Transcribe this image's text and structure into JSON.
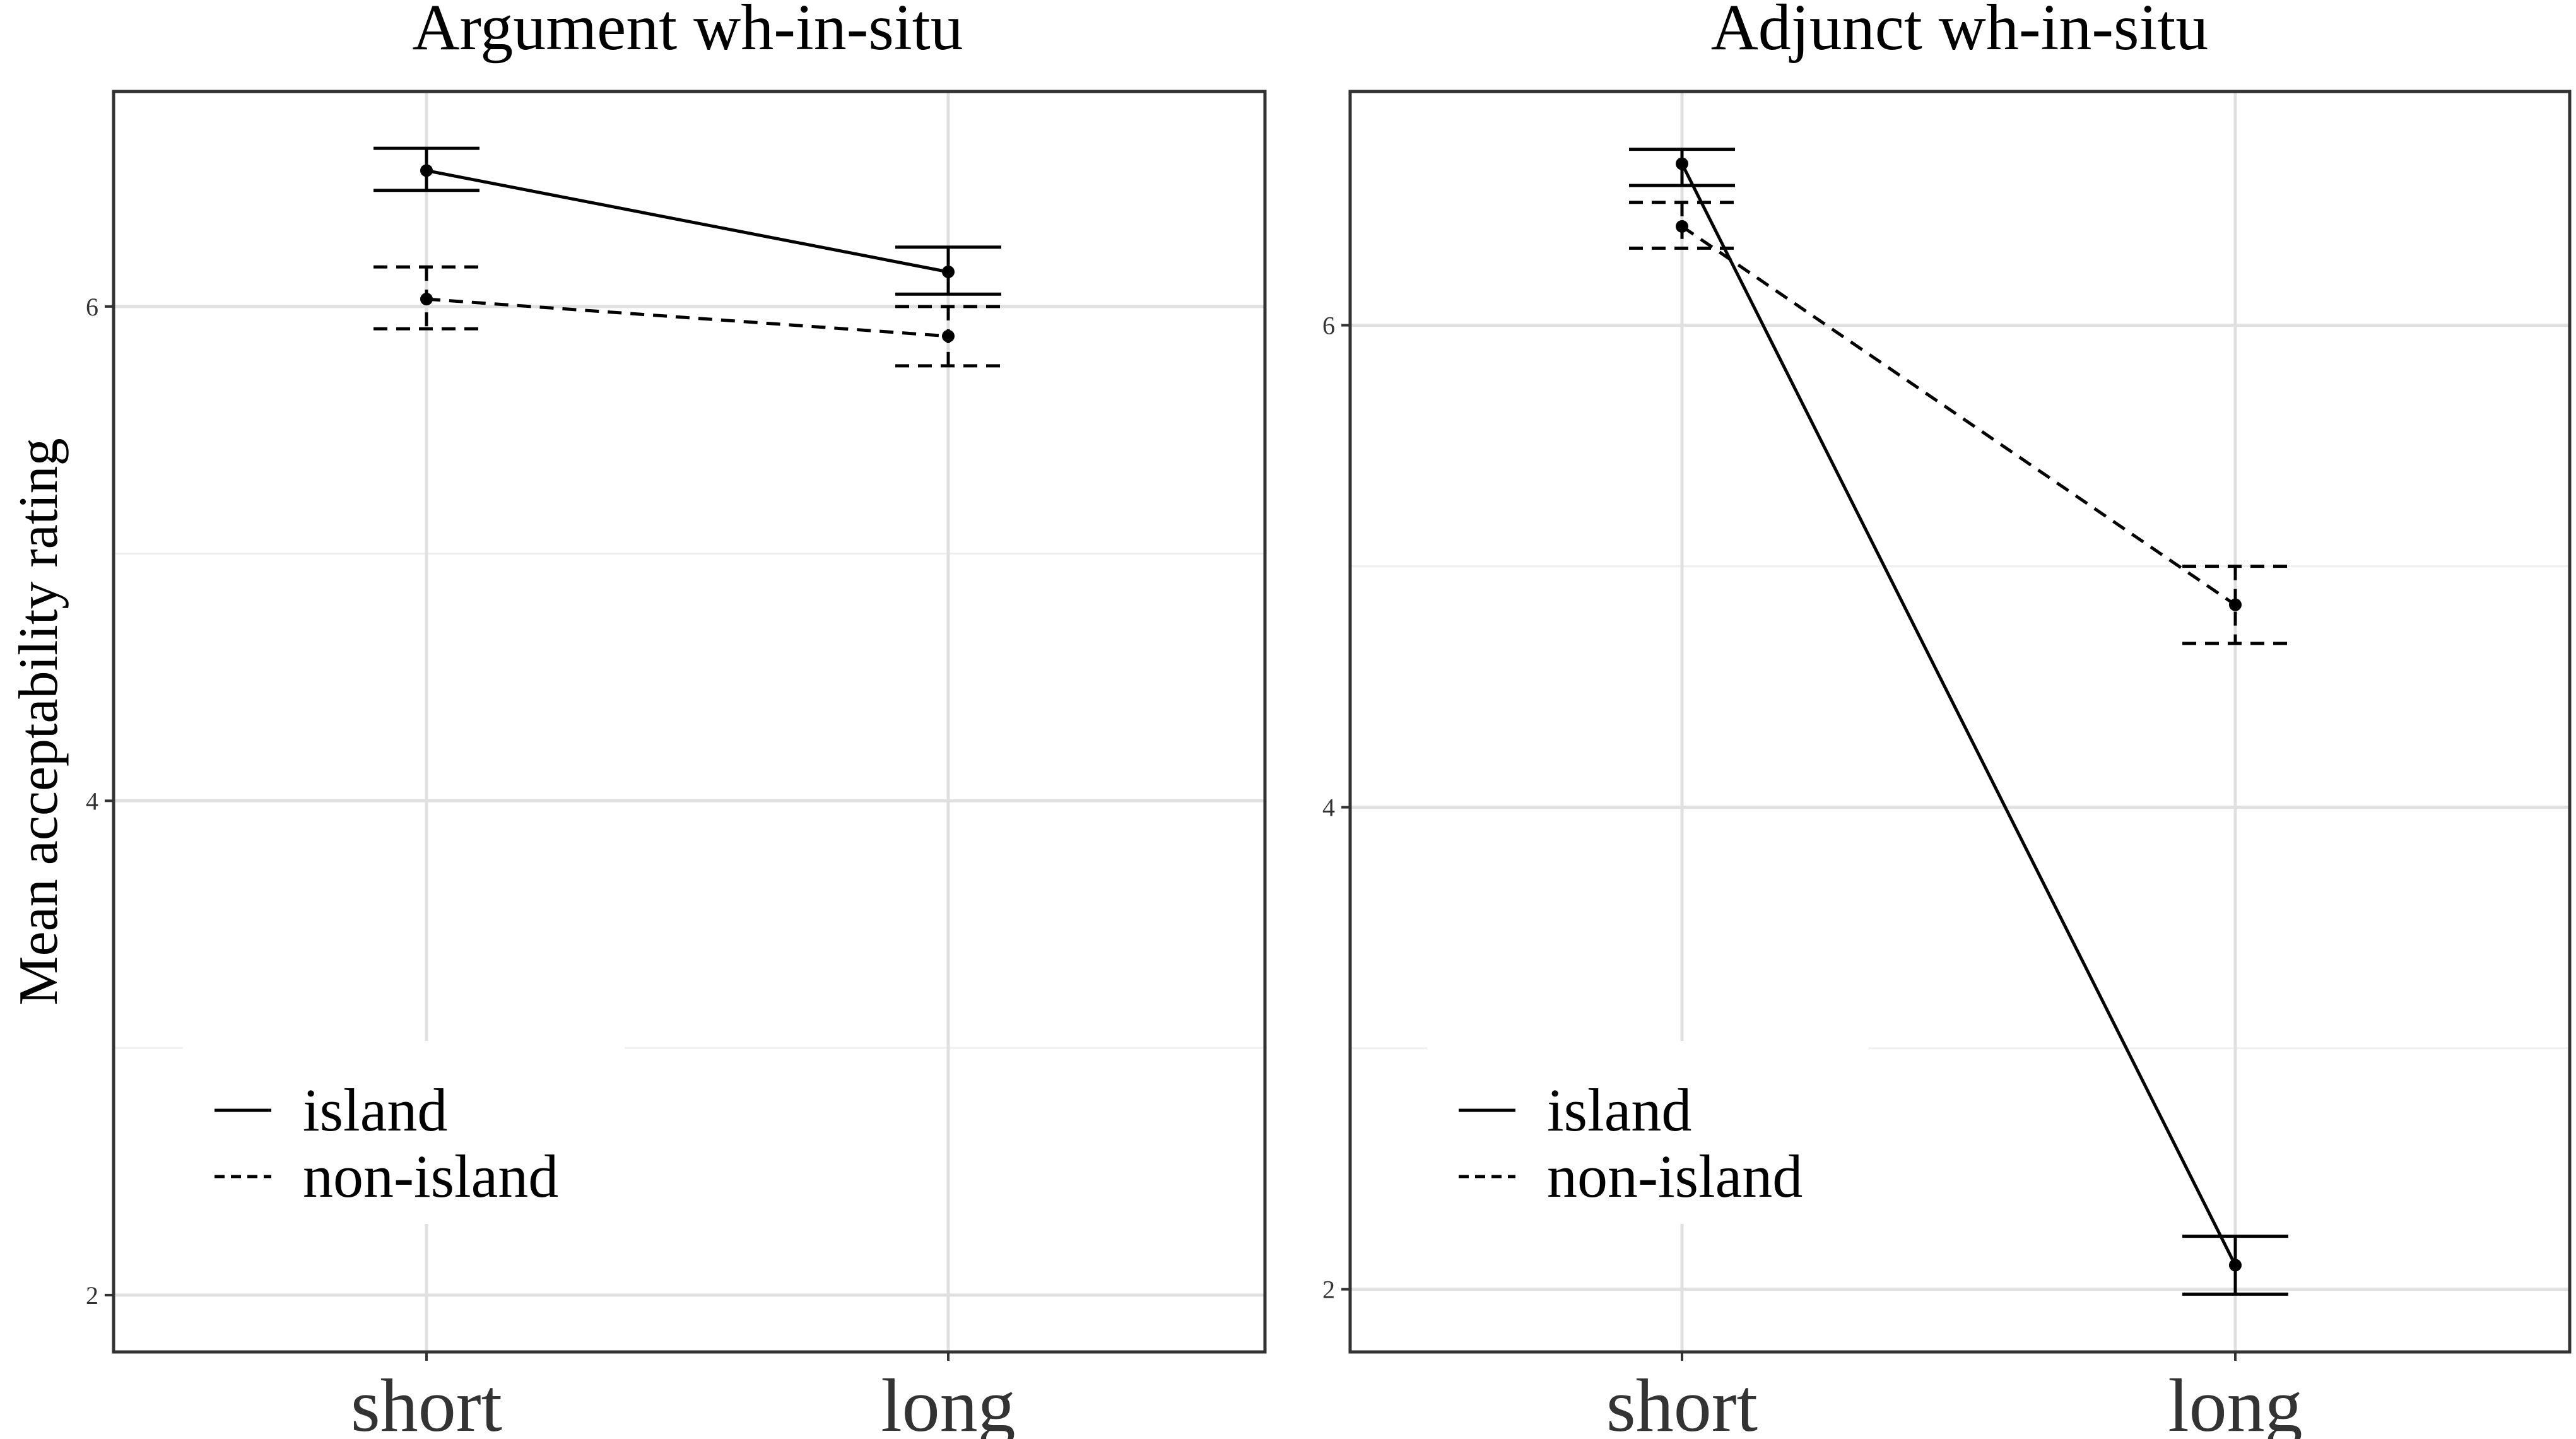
{
  "chart_data": [
    {
      "type": "line",
      "title": "Argument wh-in-situ",
      "xlabel": "",
      "ylabel": "Mean acceptability rating",
      "categories": [
        "short",
        "long"
      ],
      "ylim": [
        1.77,
        6.87
      ],
      "yticks": [
        2,
        4,
        6
      ],
      "grid": true,
      "legend_position": "bottom-left",
      "series": [
        {
          "name": "island",
          "linestyle": "solid",
          "values": [
            6.55,
            6.14
          ],
          "lower": [
            6.47,
            6.05
          ],
          "upper": [
            6.64,
            6.24
          ]
        },
        {
          "name": "non-island",
          "linestyle": "dashed",
          "values": [
            6.03,
            5.88
          ],
          "lower": [
            5.91,
            5.76
          ],
          "upper": [
            6.16,
            6.0
          ]
        }
      ]
    },
    {
      "type": "line",
      "title": "Adjunct wh-in-situ",
      "xlabel": "",
      "ylabel": "",
      "categories": [
        "short",
        "long"
      ],
      "ylim": [
        1.74,
        6.97
      ],
      "yticks": [
        2,
        4,
        6
      ],
      "grid": true,
      "legend_position": "bottom-left",
      "series": [
        {
          "name": "island",
          "linestyle": "solid",
          "values": [
            6.67,
            2.1
          ],
          "lower": [
            6.58,
            1.98
          ],
          "upper": [
            6.73,
            2.22
          ]
        },
        {
          "name": "non-island",
          "linestyle": "dashed",
          "values": [
            6.41,
            4.84
          ],
          "lower": [
            6.32,
            4.68
          ],
          "upper": [
            6.51,
            5.0
          ]
        }
      ]
    }
  ]
}
